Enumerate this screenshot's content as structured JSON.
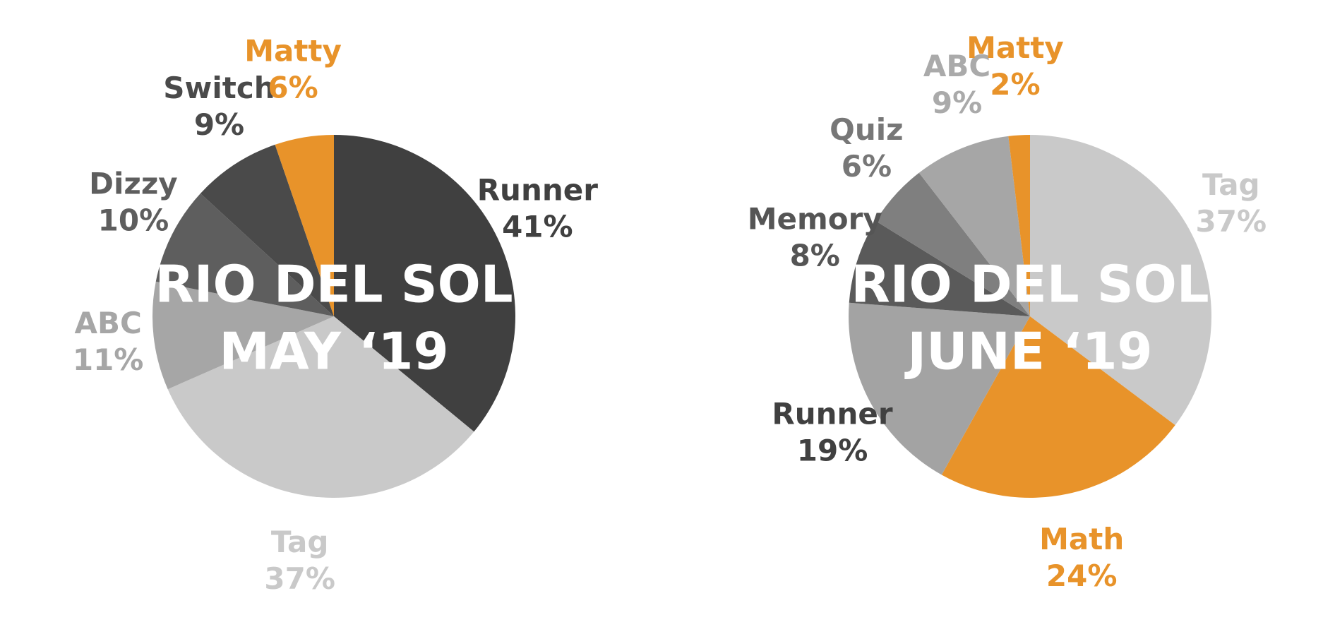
{
  "chart_data": [
    {
      "type": "pie",
      "title_lines": [
        "RIO DEL SOL",
        "MAY ‘19"
      ],
      "categories": [
        "Runner",
        "Tag",
        "ABC",
        "Dizzy",
        "Switch",
        "Matty"
      ],
      "values": [
        41,
        37,
        11,
        10,
        9,
        6
      ],
      "value_labels": [
        "41%",
        "37%",
        "11%",
        "10%",
        "9%",
        "6%"
      ],
      "colors": [
        "#404040",
        "#c9c9c9",
        "#a6a6a6",
        "#5e5e5e",
        "#4a4a4a",
        "#e8932a"
      ],
      "label_colors": [
        "#404040",
        "#c9c9c9",
        "#a6a6a6",
        "#5e5e5e",
        "#4a4a4a",
        "#e8932a"
      ]
    },
    {
      "type": "pie",
      "title_lines": [
        "RIO DEL SOL",
        "JUNE ‘19"
      ],
      "categories": [
        "Tag",
        "Math",
        "Runner",
        "Memory",
        "Quiz",
        "ABC",
        "Matty"
      ],
      "values": [
        37,
        24,
        19,
        8,
        6,
        9,
        2
      ],
      "value_labels": [
        "37%",
        "24%",
        "19%",
        "8%",
        "6%",
        "9%",
        "2%"
      ],
      "colors": [
        "#c9c9c9",
        "#e8932a",
        "#a3a3a3",
        "#5a5a5a",
        "#7f7f7f",
        "#a6a6a6",
        "#e8932a"
      ],
      "label_colors": [
        "#c9c9c9",
        "#e8932a",
        "#404040",
        "#555555",
        "#777777",
        "#aaaaaa",
        "#e8932a"
      ]
    }
  ]
}
